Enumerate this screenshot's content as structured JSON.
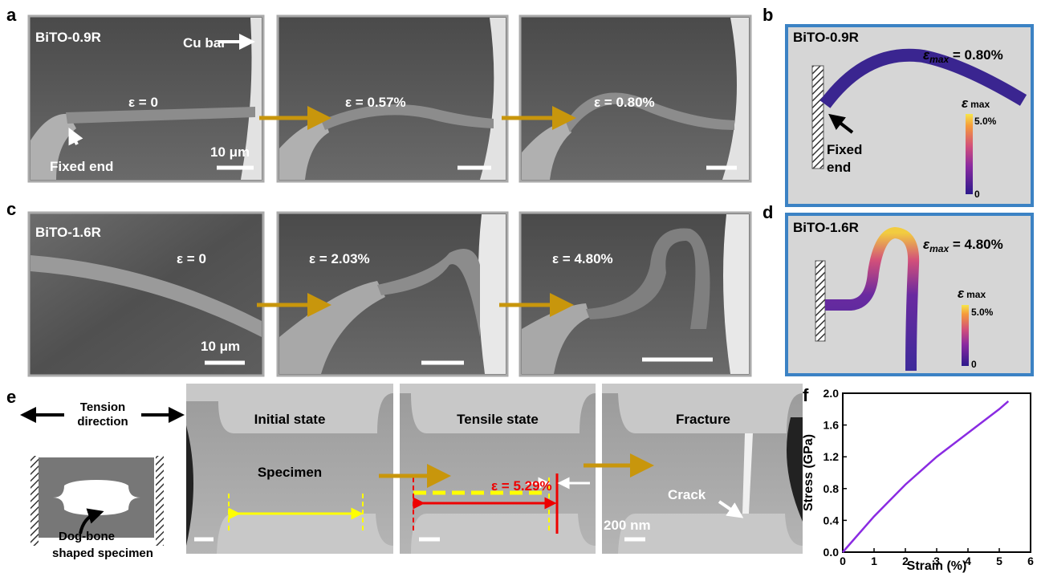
{
  "panels": {
    "a": {
      "label": "a",
      "sample": "BiTO-0.9R",
      "cu_bar": "Cu bar",
      "fixed_end": "Fixed end",
      "scale": "10 μm",
      "strains": [
        "ε = 0",
        "ε = 0.57%",
        "ε = 0.80%"
      ]
    },
    "b": {
      "label": "b",
      "sample": "BiTO-0.9R",
      "emax_symbol": "ε",
      "emax_sub": "max",
      "emax_value": " = 0.80%",
      "fixed_end": [
        "Fixed",
        "end"
      ],
      "colorbar": {
        "symbol": "ε",
        "sub": "max",
        "top": "5.0%",
        "bottom": "0"
      }
    },
    "c": {
      "label": "c",
      "sample": "BiTO-1.6R",
      "scale": "10 μm",
      "strains": [
        "ε = 0",
        "ε = 2.03%",
        "ε = 4.80%"
      ]
    },
    "d": {
      "label": "d",
      "sample": "BiTO-1.6R",
      "emax_symbol": "ε",
      "emax_sub": "max",
      "emax_value": " = 4.80%",
      "colorbar": {
        "symbol": "ε",
        "sub": "max",
        "top": "5.0%",
        "bottom": "0"
      }
    },
    "e": {
      "label": "e",
      "tension": [
        "Tension",
        "direction"
      ],
      "dogbone": [
        "Dog-bone",
        "shaped specimen"
      ],
      "initial": "Initial state",
      "specimen": "Specimen",
      "tensile": "Tensile state",
      "strain": "ε = 5.29%",
      "fracture": "Fracture",
      "crack": "Crack",
      "scale": "200 nm"
    },
    "f": {
      "label": "f"
    }
  },
  "chart_data": {
    "type": "line",
    "xlabel": "Strain (%)",
    "ylabel": "Stress (GPa)",
    "x": [
      0,
      1,
      2,
      3,
      4,
      5,
      5.29
    ],
    "values": [
      0,
      0.45,
      0.85,
      1.2,
      1.5,
      1.8,
      1.9
    ],
    "color": "#8a2be2",
    "xlim": [
      0,
      6
    ],
    "ylim": [
      0,
      2.0
    ],
    "xticks": [
      0,
      1,
      2,
      3,
      4,
      5,
      6
    ],
    "yticks": [
      {
        "value": 0,
        "label": "0.0"
      },
      {
        "value": 0.4,
        "label": "0.4"
      },
      {
        "value": 0.8,
        "label": "0.8"
      },
      {
        "value": 1.2,
        "label": "1.2"
      },
      {
        "value": 1.6,
        "label": "1.6"
      },
      {
        "value": 2.0,
        "label": "2.0"
      }
    ]
  }
}
